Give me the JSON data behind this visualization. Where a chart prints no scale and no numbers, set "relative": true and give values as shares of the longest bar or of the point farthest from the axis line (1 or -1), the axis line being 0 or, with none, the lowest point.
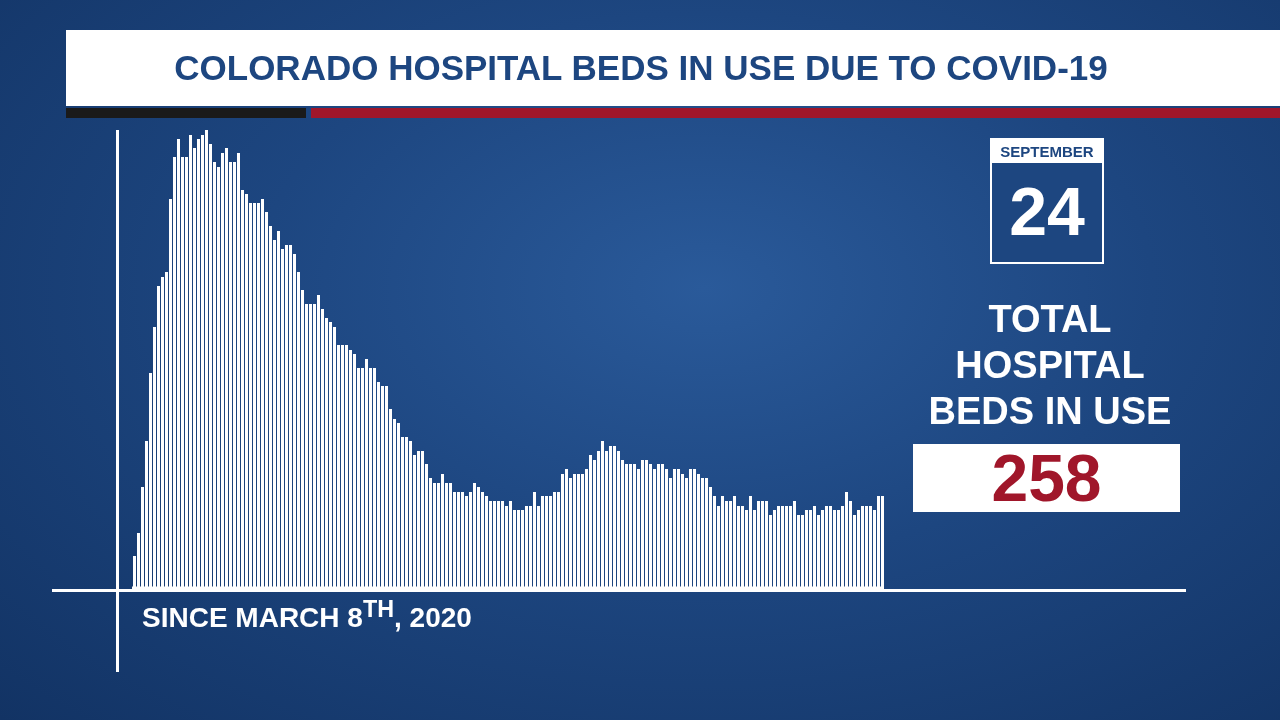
{
  "chart_data": {
    "type": "bar",
    "title": "COLORADO HOSPITAL BEDS IN USE DUE TO COVID-19",
    "xlabel": "SINCE MARCH 8$^{TH}$, 2020",
    "relative": true,
    "color": "#ffffff",
    "categories": [
      null,
      null,
      null,
      null,
      null,
      null,
      null,
      null,
      null,
      null,
      null,
      null,
      null,
      null,
      null,
      null,
      null,
      null,
      null,
      null,
      null,
      null,
      null,
      null,
      null,
      null,
      null,
      null,
      null,
      null,
      null,
      null,
      null,
      null,
      null,
      null,
      null,
      null,
      null,
      null,
      null,
      null,
      null,
      null,
      null,
      null,
      null,
      null,
      null,
      null,
      null,
      null,
      null,
      null,
      null,
      null,
      null,
      null,
      null,
      null,
      null,
      null,
      null,
      null,
      null,
      null,
      null,
      null,
      null,
      null,
      null,
      null,
      null,
      null,
      null,
      null,
      null,
      null,
      null,
      null,
      null,
      null,
      null,
      null,
      null,
      null,
      null,
      null,
      null,
      null,
      null,
      null,
      null,
      null,
      null,
      null,
      null,
      null,
      null,
      null,
      null,
      null,
      null,
      null,
      null,
      null,
      null,
      null,
      null,
      null,
      null,
      null,
      null,
      null,
      null,
      null,
      null,
      null,
      null,
      null,
      null,
      null,
      null,
      null,
      null,
      null,
      null,
      null,
      null,
      null,
      null,
      null,
      null,
      null,
      null,
      null,
      null,
      null,
      null,
      null,
      null,
      null,
      null,
      null,
      null,
      null,
      null,
      null,
      null,
      null,
      null,
      null,
      null,
      null,
      null,
      null,
      null,
      null,
      null,
      null,
      null,
      null,
      null,
      null,
      null,
      null,
      null,
      null,
      null,
      null,
      null,
      null,
      null,
      null,
      null,
      null,
      null,
      null,
      null,
      null,
      null,
      null,
      null,
      null,
      null,
      null,
      null,
      null
    ],
    "values": [
      0.07,
      0.12,
      0.22,
      0.32,
      0.47,
      0.57,
      0.66,
      0.68,
      0.69,
      0.85,
      0.94,
      0.98,
      0.94,
      0.94,
      0.99,
      0.96,
      0.98,
      0.99,
      1.0,
      0.97,
      0.93,
      0.92,
      0.95,
      0.96,
      0.93,
      0.93,
      0.95,
      0.87,
      0.86,
      0.84,
      0.84,
      0.84,
      0.85,
      0.82,
      0.79,
      0.76,
      0.78,
      0.74,
      0.75,
      0.75,
      0.73,
      0.69,
      0.65,
      0.62,
      0.62,
      0.62,
      0.64,
      0.61,
      0.59,
      0.58,
      0.57,
      0.53,
      0.53,
      0.53,
      0.52,
      0.51,
      0.48,
      0.48,
      0.5,
      0.48,
      0.48,
      0.45,
      0.44,
      0.44,
      0.39,
      0.37,
      0.36,
      0.33,
      0.33,
      0.32,
      0.29,
      0.3,
      0.3,
      0.27,
      0.24,
      0.23,
      0.23,
      0.25,
      0.23,
      0.23,
      0.21,
      0.21,
      0.21,
      0.2,
      0.21,
      0.23,
      0.22,
      0.21,
      0.2,
      0.19,
      0.19,
      0.19,
      0.19,
      0.18,
      0.19,
      0.17,
      0.17,
      0.17,
      0.18,
      0.18,
      0.21,
      0.18,
      0.2,
      0.2,
      0.2,
      0.21,
      0.21,
      0.25,
      0.26,
      0.24,
      0.25,
      0.25,
      0.25,
      0.26,
      0.29,
      0.28,
      0.3,
      0.32,
      0.3,
      0.31,
      0.31,
      0.3,
      0.28,
      0.27,
      0.27,
      0.27,
      0.26,
      0.28,
      0.28,
      0.27,
      0.26,
      0.27,
      0.27,
      0.26,
      0.24,
      0.26,
      0.26,
      0.25,
      0.24,
      0.26,
      0.26,
      0.25,
      0.24,
      0.24,
      0.22,
      0.2,
      0.18,
      0.2,
      0.19,
      0.19,
      0.2,
      0.18,
      0.18,
      0.17,
      0.2,
      0.17,
      0.19,
      0.19,
      0.19,
      0.16,
      0.17,
      0.18,
      0.18,
      0.18,
      0.18,
      0.19,
      0.16,
      0.16,
      0.17,
      0.17,
      0.18,
      0.16,
      0.17,
      0.18,
      0.18,
      0.17,
      0.17,
      0.18,
      0.21,
      0.19,
      0.16,
      0.17,
      0.18,
      0.18,
      0.18,
      0.17,
      0.2,
      0.2
    ],
    "annotations": [
      "SEPTEMBER",
      "24",
      "TOTAL HOSPITAL BEDS IN USE",
      "258"
    ]
  }
}
